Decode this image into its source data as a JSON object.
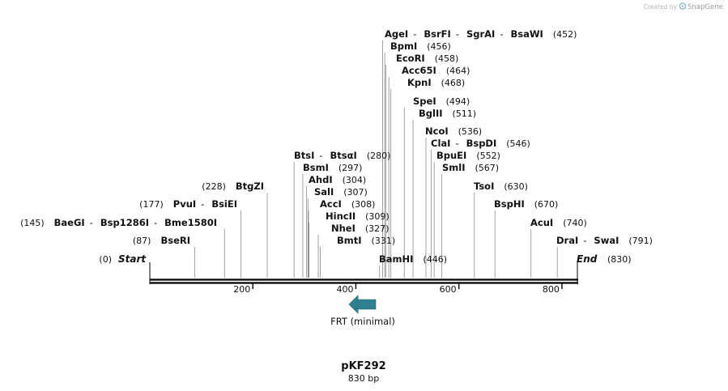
{
  "credit": {
    "prefix": "Created by",
    "brand": "SnapGene"
  },
  "map": {
    "length": 830,
    "name": "pKF292",
    "size_label": "830 bp",
    "ticks": [
      "200",
      "400",
      "600",
      "800"
    ],
    "feature": {
      "name": "FRT (minimal)",
      "direction": "reverse",
      "start": 390,
      "end": 426
    },
    "start_label": {
      "pos": "(0)",
      "name": "Start"
    },
    "end_label": {
      "name": "End",
      "pos": "(830)"
    },
    "enzymes": [
      {
        "names": [
          "AgeI",
          "BsrFI",
          "SgrAI",
          "BsaWI"
        ],
        "pos": 452,
        "pos_text": "(452)"
      },
      {
        "names": [
          "BpmI"
        ],
        "pos": 456,
        "pos_text": "(456)"
      },
      {
        "names": [
          "EcoRI"
        ],
        "pos": 458,
        "pos_text": "(458)"
      },
      {
        "names": [
          "Acc65I"
        ],
        "pos": 464,
        "pos_text": "(464)"
      },
      {
        "names": [
          "KpnI"
        ],
        "pos": 468,
        "pos_text": "(468)"
      },
      {
        "names": [
          "SpeI"
        ],
        "pos": 494,
        "pos_text": "(494)"
      },
      {
        "names": [
          "BglII"
        ],
        "pos": 511,
        "pos_text": "(511)"
      },
      {
        "names": [
          "NcoI"
        ],
        "pos": 536,
        "pos_text": "(536)"
      },
      {
        "names": [
          "ClaI",
          "BspDI"
        ],
        "pos": 546,
        "pos_text": "(546)"
      },
      {
        "names": [
          "BpuEI"
        ],
        "pos": 552,
        "pos_text": "(552)"
      },
      {
        "names": [
          "SmlI"
        ],
        "pos": 567,
        "pos_text": "(567)"
      },
      {
        "names": [
          "BtsI",
          "BtsαI"
        ],
        "pos": 280,
        "pos_text": "(280)"
      },
      {
        "names": [
          "BsmI"
        ],
        "pos": 297,
        "pos_text": "(297)"
      },
      {
        "names": [
          "AhdI"
        ],
        "pos": 304,
        "pos_text": "(304)"
      },
      {
        "names": [
          "SalI"
        ],
        "pos": 307,
        "pos_text": "(307)"
      },
      {
        "names": [
          "AccI"
        ],
        "pos": 308,
        "pos_text": "(308)"
      },
      {
        "names": [
          "HincII"
        ],
        "pos": 309,
        "pos_text": "(309)"
      },
      {
        "names": [
          "NheI"
        ],
        "pos": 327,
        "pos_text": "(327)"
      },
      {
        "names": [
          "BmtI"
        ],
        "pos": 331,
        "pos_text": "(331)"
      },
      {
        "names": [
          "BamHI"
        ],
        "pos": 446,
        "pos_text": "(446)"
      },
      {
        "names": [
          "BtgZI"
        ],
        "pos": 228,
        "pos_text": "(228)"
      },
      {
        "names": [
          "PvuI",
          "BsiEI"
        ],
        "pos": 177,
        "pos_text": "(177)"
      },
      {
        "names": [
          "BaeGI",
          "Bsp1286I",
          "Bme1580I"
        ],
        "pos": 145,
        "pos_text": "(145)"
      },
      {
        "names": [
          "BseRI"
        ],
        "pos": 87,
        "pos_text": "(87)"
      },
      {
        "names": [
          "TsoI"
        ],
        "pos": 630,
        "pos_text": "(630)"
      },
      {
        "names": [
          "BspHI"
        ],
        "pos": 670,
        "pos_text": "(670)"
      },
      {
        "names": [
          "AcuI"
        ],
        "pos": 740,
        "pos_text": "(740)"
      },
      {
        "names": [
          "DraI",
          "SwaI"
        ],
        "pos": 791,
        "pos_text": "(791)"
      }
    ]
  }
}
